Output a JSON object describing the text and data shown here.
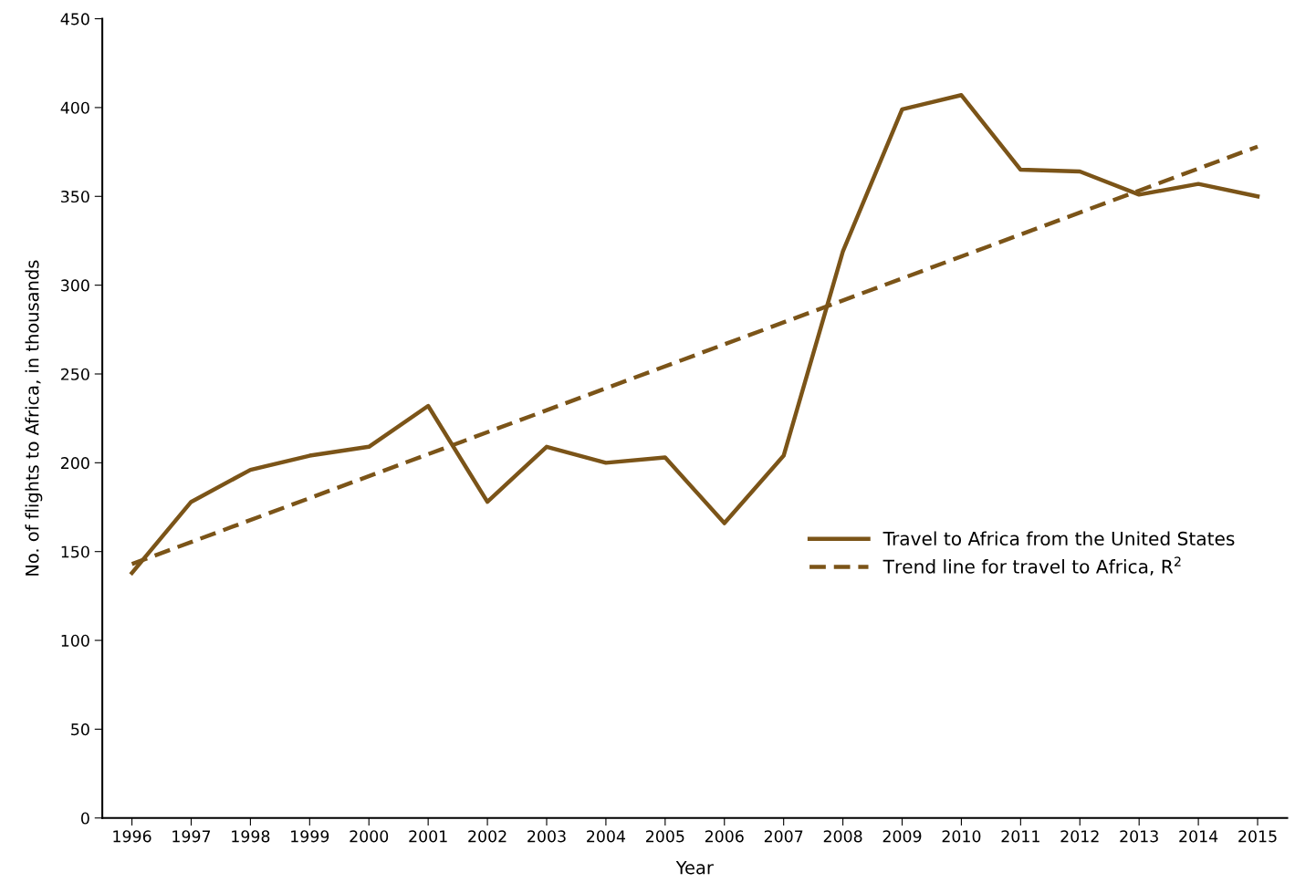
{
  "chart_data": {
    "type": "line",
    "xlabel": "Year",
    "ylabel": "No. of flights to Africa, in thousands",
    "x": [
      1996,
      1997,
      1998,
      1999,
      2000,
      2001,
      2002,
      2003,
      2004,
      2005,
      2006,
      2007,
      2008,
      2009,
      2010,
      2011,
      2012,
      2013,
      2014,
      2015
    ],
    "series": [
      {
        "name": "Travel to Africa from the United States",
        "color": "#7b5418",
        "line_style": "solid",
        "values": [
          138,
          178,
          196,
          204,
          209,
          232,
          178,
          209,
          200,
          203,
          166,
          204,
          319,
          399,
          407,
          365,
          364,
          351,
          357,
          350
        ]
      },
      {
        "name": "Trend line for travel to Africa, R$^{2}$",
        "color": "#7b5418",
        "line_style": "dashed",
        "x": [
          1996,
          2015
        ],
        "values": [
          143,
          378
        ]
      }
    ],
    "xlim": [
      1995.5,
      2015.5
    ],
    "xticks": [
      1996,
      1997,
      1998,
      1999,
      2000,
      2001,
      2002,
      2003,
      2004,
      2005,
      2006,
      2007,
      2008,
      2009,
      2010,
      2011,
      2012,
      2013,
      2014,
      2015
    ],
    "ylim": [
      0,
      450
    ],
    "yticks": [
      0,
      50,
      100,
      150,
      200,
      250,
      300,
      350,
      400,
      450
    ],
    "grid": false,
    "legend": "right",
    "marker": "none"
  }
}
